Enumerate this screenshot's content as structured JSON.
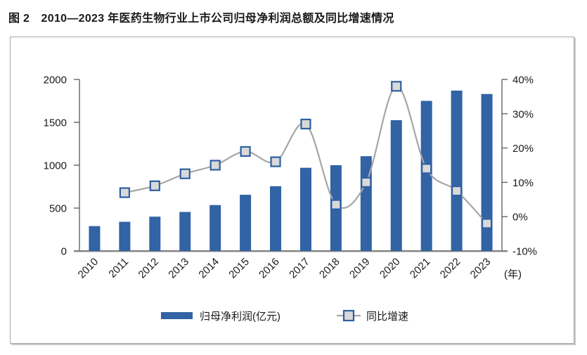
{
  "title": "图 2　2010—2023 年医药生物行业上市公司归母净利润总额及同比增速情况",
  "colors": {
    "bar": "#3163A5",
    "line": "#A6A6A6",
    "marker_fill": "#D9D9D9",
    "marker_border": "#2E5FA3",
    "axis": "#595959",
    "baseline": "#808080",
    "baseline_shadow": "#CFCFCF",
    "text": "#1A1A1A",
    "frame_border": "#A6A6A6"
  },
  "legend": {
    "bar_label": "归母净利润(亿元)",
    "line_label": "同比增速",
    "position": "bottom"
  },
  "chart_data": {
    "type": "bar",
    "title": "图 2　2010—2023 年医药生物行业上市公司归母净利润总额及同比增速情况",
    "categories": [
      "2010",
      "2011",
      "2012",
      "2013",
      "2014",
      "2015",
      "2016",
      "2017",
      "2018",
      "2019",
      "2020",
      "2021",
      "2022",
      "2023"
    ],
    "series": [
      {
        "name": "归母净利润(亿元)",
        "type": "bar",
        "axis": "left",
        "values": [
          290,
          340,
          400,
          455,
          535,
          655,
          755,
          970,
          1000,
          1105,
          1525,
          1750,
          1870,
          1830
        ]
      },
      {
        "name": "同比增速",
        "type": "line",
        "axis": "right",
        "values": [
          null,
          7,
          9,
          12.5,
          15,
          19,
          16,
          27,
          3.5,
          10,
          38,
          14,
          7.5,
          -2
        ]
      }
    ],
    "left_axis": {
      "min": 0,
      "max": 2000,
      "step": 500,
      "tick_labels": [
        "0",
        "500",
        "1000",
        "1500",
        "2000"
      ],
      "ylim": [
        0,
        2000
      ]
    },
    "right_axis": {
      "min": -10,
      "max": 40,
      "step": 10,
      "tick_labels": [
        "-10%",
        "0%",
        "10%",
        "20%",
        "30%",
        "40%"
      ],
      "ylim": [
        -10,
        40
      ],
      "unit": "%"
    },
    "x_axis": {
      "unit_label": "(年)",
      "label_rotation": -45
    },
    "grid": false,
    "legend_position": "bottom"
  }
}
